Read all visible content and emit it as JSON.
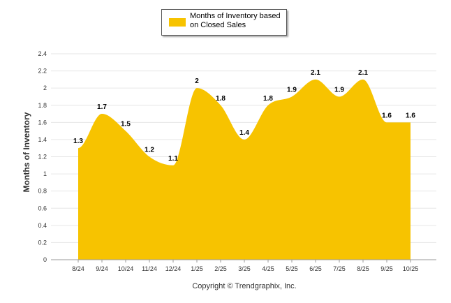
{
  "legend": {
    "label": "Months of Inventory based on Closed Sales"
  },
  "footer": {
    "copyright": "Copyright © Trendgraphix, Inc."
  },
  "colors": {
    "series": "#f7c300",
    "grid": "#e6e6e6",
    "axis": "#999999"
  },
  "chart_data": {
    "type": "area",
    "title": "",
    "xlabel": "",
    "ylabel": "Months of Inventory",
    "categories": [
      "8/24",
      "9/24",
      "10/24",
      "11/24",
      "12/24",
      "1/25",
      "2/25",
      "3/25",
      "4/25",
      "5/25",
      "6/25",
      "7/25",
      "8/25",
      "9/25",
      "10/25"
    ],
    "series": [
      {
        "name": "Months of Inventory based on Closed Sales",
        "values": [
          1.3,
          1.7,
          1.5,
          1.2,
          1.1,
          2,
          1.8,
          1.4,
          1.8,
          1.9,
          2.1,
          1.9,
          2.1,
          1.6,
          1.6
        ]
      }
    ],
    "ylim": [
      0,
      2.4
    ],
    "yticks": [
      "0",
      "0.2",
      "0.4",
      "0.6",
      "0.8",
      "1",
      "1.2",
      "1.4",
      "1.6",
      "1.8",
      "2",
      "2.2",
      "2.4"
    ],
    "grid": true,
    "legend_position": "top-center"
  }
}
